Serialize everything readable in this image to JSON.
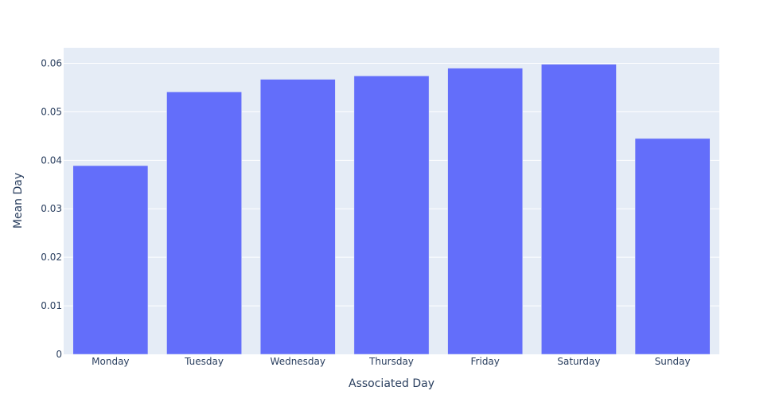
{
  "chart_data": {
    "type": "bar",
    "title": "",
    "xlabel": "Associated Day",
    "ylabel": "Mean Day",
    "categories": [
      "Monday",
      "Tuesday",
      "Wednesday",
      "Thursday",
      "Friday",
      "Saturday",
      "Sunday"
    ],
    "values": [
      0.0389,
      0.0541,
      0.0567,
      0.0574,
      0.059,
      0.0598,
      0.0445
    ],
    "ylim": [
      0,
      0.0632
    ],
    "yticks": [
      0,
      0.01,
      0.02,
      0.03,
      0.04,
      0.05,
      0.06
    ],
    "ytick_labels": [
      "0",
      "0.01",
      "0.02",
      "0.03",
      "0.04",
      "0.05",
      "0.06"
    ],
    "grid": true,
    "legend": "none",
    "colors": {
      "bar": "#636efa",
      "plot_background": "#e5ecf6",
      "gridline": "#ffffff",
      "text": "#2a3f5f"
    }
  }
}
